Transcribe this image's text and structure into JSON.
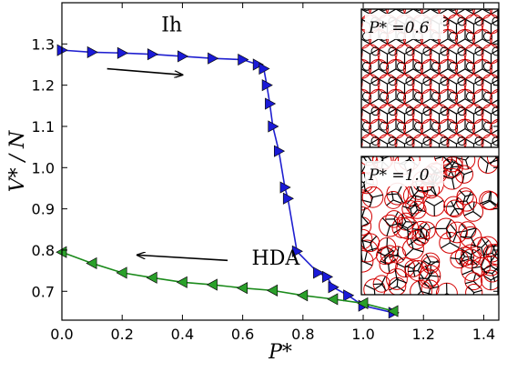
{
  "chart_data": {
    "type": "line",
    "xlabel": "P*",
    "ylabel": "V* / N",
    "xlim": [
      0.0,
      1.45
    ],
    "ylim": [
      0.63,
      1.4
    ],
    "xticks": [
      0.0,
      0.2,
      0.4,
      0.6,
      0.8,
      1.0,
      1.2,
      1.4
    ],
    "yticks": [
      0.7,
      0.8,
      0.9,
      1.0,
      1.1,
      1.2,
      1.3
    ],
    "xtick_labels": [
      "0.0",
      "0.2",
      "0.4",
      "0.6",
      "0.8",
      "1.0",
      "1.2",
      "1.4"
    ],
    "ytick_labels": [
      "0.7",
      "0.8",
      "0.9",
      "1.0",
      "1.1",
      "1.2",
      "1.3"
    ],
    "grid": false,
    "series": [
      {
        "name": "Ih",
        "color": "#1f1fd0",
        "marker_color": "#1a1ad8",
        "marker": "triangle-right",
        "x": [
          0.0,
          0.1,
          0.2,
          0.3,
          0.4,
          0.5,
          0.6,
          0.65,
          0.67,
          0.68,
          0.69,
          0.7,
          0.72,
          0.74,
          0.75,
          0.78,
          0.85,
          0.88,
          0.9,
          0.95,
          1.0,
          1.1
        ],
        "y": [
          1.285,
          1.28,
          1.278,
          1.275,
          1.27,
          1.265,
          1.262,
          1.25,
          1.24,
          1.2,
          1.155,
          1.1,
          1.04,
          0.952,
          0.925,
          0.797,
          0.745,
          0.735,
          0.71,
          0.69,
          0.665,
          0.648
        ]
      },
      {
        "name": "HDA",
        "color": "#1a8a1a",
        "marker_color": "#2aa02a",
        "marker": "triangle-left",
        "x": [
          0.0,
          0.1,
          0.2,
          0.3,
          0.4,
          0.5,
          0.6,
          0.7,
          0.8,
          0.9,
          1.0,
          1.1
        ],
        "y": [
          0.795,
          0.768,
          0.745,
          0.733,
          0.722,
          0.716,
          0.708,
          0.702,
          0.69,
          0.681,
          0.671,
          0.652
        ]
      }
    ],
    "annotations": [
      {
        "text": "Ih",
        "x": 0.33,
        "y": 1.33
      },
      {
        "text": "HDA",
        "x": 0.63,
        "y": 0.765
      }
    ],
    "arrows": [
      {
        "direction": "right",
        "x_from": 0.15,
        "x_to": 0.4,
        "y_from": 1.24,
        "y_to": 1.225
      },
      {
        "direction": "left",
        "x_from": 0.55,
        "x_to": 0.25,
        "y_from": 0.775,
        "y_to": 0.788
      }
    ],
    "insets": [
      {
        "label": "P* =0.6",
        "structure": "ordered"
      },
      {
        "label": "P* =1.0",
        "structure": "disordered"
      }
    ]
  }
}
